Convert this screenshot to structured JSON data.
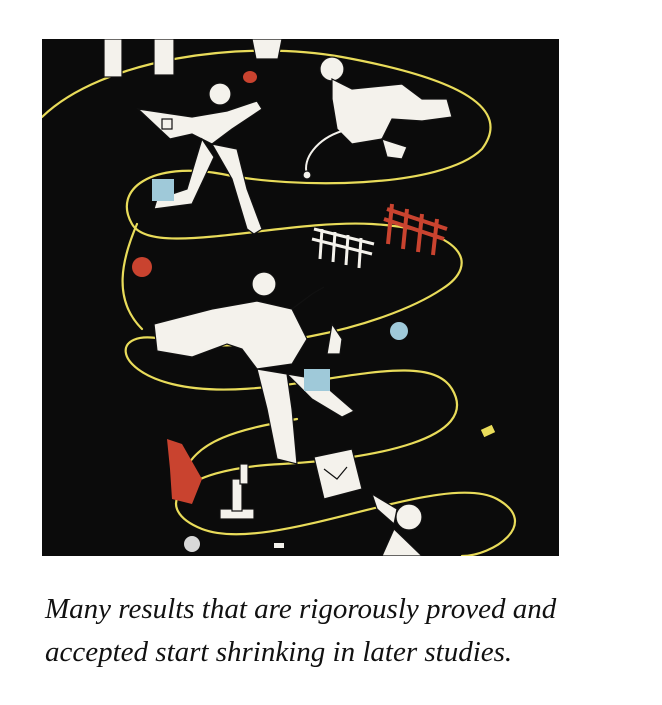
{
  "caption": {
    "line1": "Many results that are rigorously proved and",
    "line2": "accepted start shrinking in later studies."
  },
  "colors": {
    "background": "#0b0b0b",
    "thread": "#e9dc5a",
    "figure": "#f4f2ec",
    "accent_red": "#c9432f",
    "accent_blue": "#9fc9d9"
  }
}
